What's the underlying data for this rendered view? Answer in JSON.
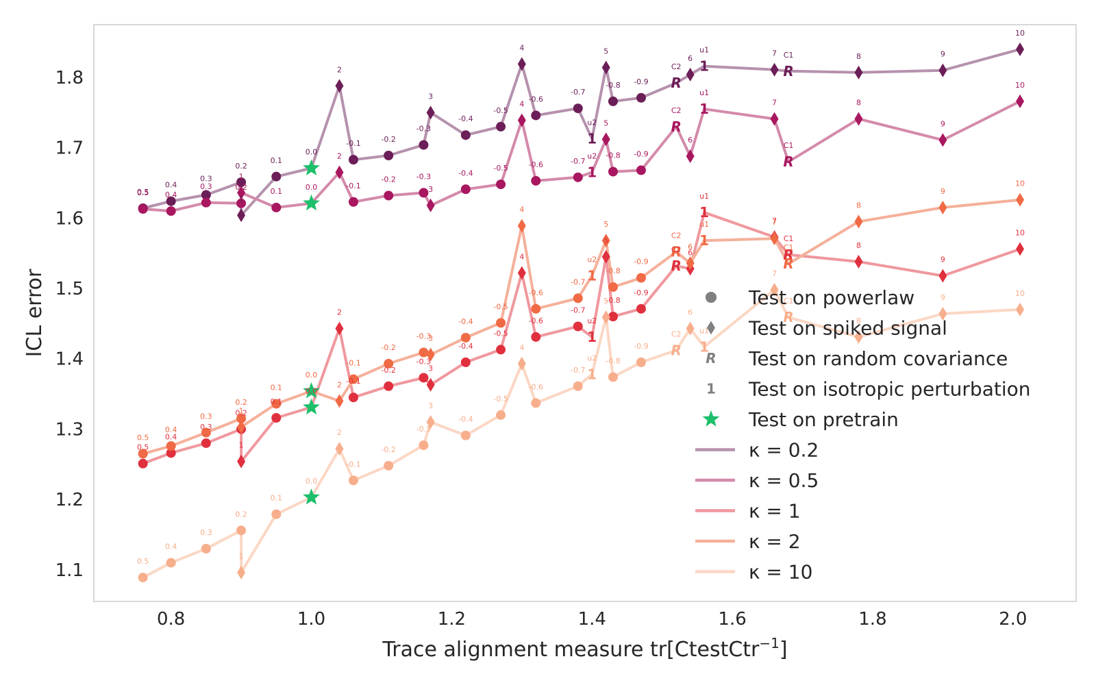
{
  "chart_data": {
    "type": "line",
    "title": "",
    "xlabel": "Trace alignment measure tr[CtestCtr",
    "xlabel_sup": "−1",
    "xlabel_end": "]",
    "ylabel": "ICL error",
    "xlim": [
      0.69,
      2.09
    ],
    "ylim": [
      1.055,
      1.875
    ],
    "xticks": [
      0.8,
      1.0,
      1.2,
      1.4,
      1.6,
      1.8,
      2.0
    ],
    "xtick_labels": [
      "0.8",
      "1.0",
      "1.2",
      "1.4",
      "1.6",
      "1.8",
      "2.0"
    ],
    "yticks": [
      1.1,
      1.2,
      1.3,
      1.4,
      1.5,
      1.6,
      1.7,
      1.8
    ],
    "ytick_labels": [
      "1.1",
      "1.2",
      "1.3",
      "1.4",
      "1.5",
      "1.6",
      "1.7",
      "1.8"
    ],
    "grid": false,
    "legend_position": "lower-right",
    "legend": {
      "markers": [
        {
          "marker": "circle",
          "label": "Test on powerlaw",
          "color": "#808080"
        },
        {
          "marker": "diamond",
          "label": "Test on spiked signal",
          "color": "#808080"
        },
        {
          "marker": "R",
          "label": "Test on random covariance",
          "color": "#808080"
        },
        {
          "marker": "1",
          "label": "Test on isotropic perturbation",
          "color": "#808080"
        },
        {
          "marker": "star",
          "label": "Test on pretrain",
          "color": "#1dbf6b"
        }
      ],
      "series_prefix": "κ = "
    },
    "pretrain_color": "#1dbf6b",
    "series": [
      {
        "name": "0.2",
        "color": "#6b1e57",
        "line_color": "#b592ad",
        "path": [
          {
            "x": 0.76,
            "y": 1.614,
            "m": "o",
            "l": "0.5"
          },
          {
            "x": 0.8,
            "y": 1.624,
            "m": "o",
            "l": "0.4"
          },
          {
            "x": 0.85,
            "y": 1.633,
            "m": "o",
            "l": "0.3"
          },
          {
            "x": 0.9,
            "y": 1.651,
            "m": "o",
            "l": "0.2"
          },
          {
            "x": 0.9,
            "y": 1.604,
            "m": "d",
            "l": "1"
          },
          {
            "x": 0.95,
            "y": 1.659,
            "m": "o",
            "l": "0.1"
          },
          {
            "x": 1.0,
            "y": 1.671,
            "m": "s",
            "l": "0.0"
          },
          {
            "x": 1.04,
            "y": 1.788,
            "m": "d",
            "l": "2"
          },
          {
            "x": 1.06,
            "y": 1.683,
            "m": "o",
            "l": "-0.1"
          },
          {
            "x": 1.11,
            "y": 1.689,
            "m": "o",
            "l": "-0.2"
          },
          {
            "x": 1.16,
            "y": 1.704,
            "m": "o",
            "l": "-0.3"
          },
          {
            "x": 1.17,
            "y": 1.75,
            "m": "d",
            "l": "3"
          },
          {
            "x": 1.22,
            "y": 1.718,
            "m": "o",
            "l": "-0.4"
          },
          {
            "x": 1.27,
            "y": 1.73,
            "m": "o",
            "l": "-0.5"
          },
          {
            "x": 1.3,
            "y": 1.819,
            "m": "d",
            "l": "4"
          },
          {
            "x": 1.32,
            "y": 1.746,
            "m": "o",
            "l": "-0.6"
          },
          {
            "x": 1.38,
            "y": 1.756,
            "m": "o",
            "l": "-0.7"
          },
          {
            "x": 1.4,
            "y": 1.713,
            "m": "1",
            "l": "u2"
          },
          {
            "x": 1.42,
            "y": 1.814,
            "m": "d",
            "l": "5"
          },
          {
            "x": 1.43,
            "y": 1.766,
            "m": "o",
            "l": "-0.8"
          },
          {
            "x": 1.47,
            "y": 1.771,
            "m": "o",
            "l": "-0.9"
          },
          {
            "x": 1.52,
            "y": 1.792,
            "m": "R",
            "l": "C2"
          },
          {
            "x": 1.54,
            "y": 1.804,
            "m": "d",
            "l": "6"
          },
          {
            "x": 1.56,
            "y": 1.816,
            "m": "1",
            "l": "u1"
          },
          {
            "x": 1.66,
            "y": 1.811,
            "m": "d",
            "l": "7"
          },
          {
            "x": 1.68,
            "y": 1.809,
            "m": "R",
            "l": "C1"
          },
          {
            "x": 1.78,
            "y": 1.807,
            "m": "d",
            "l": "8"
          },
          {
            "x": 1.9,
            "y": 1.81,
            "m": "d",
            "l": "9"
          },
          {
            "x": 2.01,
            "y": 1.84,
            "m": "d",
            "l": "10"
          }
        ]
      },
      {
        "name": "0.5",
        "color": "#a8175f",
        "line_color": "#d48aaa",
        "path": [
          {
            "x": 0.76,
            "y": 1.613,
            "m": "o",
            "l": "0.5"
          },
          {
            "x": 0.8,
            "y": 1.61,
            "m": "o",
            "l": "0.4"
          },
          {
            "x": 0.85,
            "y": 1.622,
            "m": "o",
            "l": "0.3"
          },
          {
            "x": 0.9,
            "y": 1.621,
            "m": "o",
            "l": "0.2"
          },
          {
            "x": 0.9,
            "y": 1.636,
            "m": "d",
            "l": "1"
          },
          {
            "x": 0.95,
            "y": 1.615,
            "m": "o",
            "l": "0.1"
          },
          {
            "x": 1.0,
            "y": 1.621,
            "m": "s",
            "l": "0.0"
          },
          {
            "x": 1.04,
            "y": 1.665,
            "m": "d",
            "l": "2"
          },
          {
            "x": 1.06,
            "y": 1.623,
            "m": "o",
            "l": "-0.1"
          },
          {
            "x": 1.11,
            "y": 1.632,
            "m": "o",
            "l": "-0.2"
          },
          {
            "x": 1.16,
            "y": 1.636,
            "m": "o",
            "l": "-0.3"
          },
          {
            "x": 1.17,
            "y": 1.618,
            "m": "d",
            "l": "3"
          },
          {
            "x": 1.22,
            "y": 1.641,
            "m": "o",
            "l": "-0.4"
          },
          {
            "x": 1.27,
            "y": 1.648,
            "m": "o",
            "l": "-0.5"
          },
          {
            "x": 1.3,
            "y": 1.739,
            "m": "d",
            "l": "4"
          },
          {
            "x": 1.32,
            "y": 1.653,
            "m": "o",
            "l": "-0.6"
          },
          {
            "x": 1.38,
            "y": 1.658,
            "m": "o",
            "l": "-0.7"
          },
          {
            "x": 1.4,
            "y": 1.665,
            "m": "1",
            "l": "u2"
          },
          {
            "x": 1.42,
            "y": 1.712,
            "m": "d",
            "l": "5"
          },
          {
            "x": 1.43,
            "y": 1.666,
            "m": "o",
            "l": "-0.8"
          },
          {
            "x": 1.47,
            "y": 1.668,
            "m": "o",
            "l": "-0.9"
          },
          {
            "x": 1.52,
            "y": 1.73,
            "m": "R",
            "l": "C2"
          },
          {
            "x": 1.54,
            "y": 1.688,
            "m": "d",
            "l": "6"
          },
          {
            "x": 1.56,
            "y": 1.755,
            "m": "1",
            "l": "u1"
          },
          {
            "x": 1.66,
            "y": 1.741,
            "m": "d",
            "l": "7"
          },
          {
            "x": 1.68,
            "y": 1.68,
            "m": "R",
            "l": "C1"
          },
          {
            "x": 1.78,
            "y": 1.741,
            "m": "d",
            "l": "8"
          },
          {
            "x": 1.9,
            "y": 1.711,
            "m": "d",
            "l": "9"
          },
          {
            "x": 2.01,
            "y": 1.766,
            "m": "d",
            "l": "10"
          }
        ]
      },
      {
        "name": "1",
        "color": "#e0303e",
        "line_color": "#f0989e",
        "path": [
          {
            "x": 0.76,
            "y": 1.251,
            "m": "o",
            "l": "0.5"
          },
          {
            "x": 0.8,
            "y": 1.266,
            "m": "o",
            "l": "0.4"
          },
          {
            "x": 0.85,
            "y": 1.28,
            "m": "o",
            "l": "0.3"
          },
          {
            "x": 0.9,
            "y": 1.3,
            "m": "o",
            "l": "0.2"
          },
          {
            "x": 0.9,
            "y": 1.254,
            "m": "d",
            "l": "1"
          },
          {
            "x": 0.95,
            "y": 1.316,
            "m": "o",
            "l": "0.1"
          },
          {
            "x": 1.0,
            "y": 1.331,
            "m": "s",
            "l": "0.0"
          },
          {
            "x": 1.04,
            "y": 1.443,
            "m": "d",
            "l": "2"
          },
          {
            "x": 1.06,
            "y": 1.345,
            "m": "o",
            "l": "-0.1"
          },
          {
            "x": 1.11,
            "y": 1.361,
            "m": "o",
            "l": "-0.2"
          },
          {
            "x": 1.16,
            "y": 1.373,
            "m": "o",
            "l": "-0.3"
          },
          {
            "x": 1.17,
            "y": 1.363,
            "m": "d",
            "l": "3"
          },
          {
            "x": 1.22,
            "y": 1.395,
            "m": "o",
            "l": "-0.4"
          },
          {
            "x": 1.27,
            "y": 1.413,
            "m": "o",
            "l": "-0.5"
          },
          {
            "x": 1.3,
            "y": 1.522,
            "m": "d",
            "l": "4"
          },
          {
            "x": 1.32,
            "y": 1.431,
            "m": "o",
            "l": "-0.6"
          },
          {
            "x": 1.38,
            "y": 1.446,
            "m": "o",
            "l": "-0.7"
          },
          {
            "x": 1.4,
            "y": 1.431,
            "m": "1",
            "l": "u2"
          },
          {
            "x": 1.42,
            "y": 1.545,
            "m": "d",
            "l": "5"
          },
          {
            "x": 1.43,
            "y": 1.46,
            "m": "o",
            "l": "-0.8"
          },
          {
            "x": 1.47,
            "y": 1.471,
            "m": "o",
            "l": "-0.9"
          },
          {
            "x": 1.52,
            "y": 1.532,
            "m": "R",
            "l": "C2"
          },
          {
            "x": 1.54,
            "y": 1.528,
            "m": "d",
            "l": "6"
          },
          {
            "x": 1.56,
            "y": 1.608,
            "m": "1",
            "l": "u1"
          },
          {
            "x": 1.66,
            "y": 1.573,
            "m": "d",
            "l": "7"
          },
          {
            "x": 1.68,
            "y": 1.548,
            "m": "R",
            "l": "C1"
          },
          {
            "x": 1.78,
            "y": 1.538,
            "m": "d",
            "l": "8"
          },
          {
            "x": 1.9,
            "y": 1.518,
            "m": "d",
            "l": "9"
          },
          {
            "x": 2.01,
            "y": 1.556,
            "m": "d",
            "l": "10"
          }
        ]
      },
      {
        "name": "2",
        "color": "#f06a45",
        "line_color": "#f5b09a",
        "path": [
          {
            "x": 0.76,
            "y": 1.265,
            "m": "o",
            "l": "0.5"
          },
          {
            "x": 0.8,
            "y": 1.276,
            "m": "o",
            "l": "0.4"
          },
          {
            "x": 0.85,
            "y": 1.295,
            "m": "o",
            "l": "0.3"
          },
          {
            "x": 0.9,
            "y": 1.315,
            "m": "o",
            "l": "0.2"
          },
          {
            "x": 0.9,
            "y": 1.303,
            "m": "d",
            "l": "1"
          },
          {
            "x": 0.95,
            "y": 1.336,
            "m": "o",
            "l": "0.1"
          },
          {
            "x": 1.0,
            "y": 1.354,
            "m": "s",
            "l": "0.0"
          },
          {
            "x": 1.04,
            "y": 1.34,
            "m": "d",
            "l": "2"
          },
          {
            "x": 1.06,
            "y": 1.371,
            "m": "o",
            "l": "-0.1"
          },
          {
            "x": 1.11,
            "y": 1.393,
            "m": "o",
            "l": "-0.2"
          },
          {
            "x": 1.16,
            "y": 1.409,
            "m": "o",
            "l": "-0.3"
          },
          {
            "x": 1.17,
            "y": 1.406,
            "m": "d",
            "l": "3"
          },
          {
            "x": 1.22,
            "y": 1.43,
            "m": "o",
            "l": "-0.4"
          },
          {
            "x": 1.27,
            "y": 1.451,
            "m": "o",
            "l": "-0.5"
          },
          {
            "x": 1.3,
            "y": 1.589,
            "m": "d",
            "l": "4"
          },
          {
            "x": 1.32,
            "y": 1.471,
            "m": "o",
            "l": "-0.6"
          },
          {
            "x": 1.38,
            "y": 1.486,
            "m": "o",
            "l": "-0.7"
          },
          {
            "x": 1.4,
            "y": 1.518,
            "m": "1",
            "l": "u2"
          },
          {
            "x": 1.42,
            "y": 1.568,
            "m": "d",
            "l": "5"
          },
          {
            "x": 1.43,
            "y": 1.502,
            "m": "o",
            "l": "-0.8"
          },
          {
            "x": 1.47,
            "y": 1.515,
            "m": "o",
            "l": "-0.9"
          },
          {
            "x": 1.52,
            "y": 1.552,
            "m": "R",
            "l": "C2"
          },
          {
            "x": 1.54,
            "y": 1.536,
            "m": "d",
            "l": "6"
          },
          {
            "x": 1.56,
            "y": 1.568,
            "m": "1",
            "l": "u1"
          },
          {
            "x": 1.66,
            "y": 1.571,
            "m": "d",
            "l": "7"
          },
          {
            "x": 1.68,
            "y": 1.535,
            "m": "R",
            "l": "C1"
          },
          {
            "x": 1.78,
            "y": 1.595,
            "m": "d",
            "l": "8"
          },
          {
            "x": 1.9,
            "y": 1.615,
            "m": "d",
            "l": "9"
          },
          {
            "x": 2.01,
            "y": 1.626,
            "m": "d",
            "l": "10"
          }
        ]
      },
      {
        "name": "10",
        "color": "#f7ae8c",
        "line_color": "#fbd7c4",
        "path": [
          {
            "x": 0.76,
            "y": 1.089,
            "m": "o",
            "l": "0.5"
          },
          {
            "x": 0.8,
            "y": 1.11,
            "m": "o",
            "l": "0.4"
          },
          {
            "x": 0.85,
            "y": 1.13,
            "m": "o",
            "l": "0.3"
          },
          {
            "x": 0.9,
            "y": 1.156,
            "m": "o",
            "l": "0.2"
          },
          {
            "x": 0.9,
            "y": 1.096,
            "m": "d",
            "l": "1"
          },
          {
            "x": 0.95,
            "y": 1.179,
            "m": "o",
            "l": "0.1"
          },
          {
            "x": 1.0,
            "y": 1.203,
            "m": "s",
            "l": "0.0"
          },
          {
            "x": 1.04,
            "y": 1.272,
            "m": "d",
            "l": "2"
          },
          {
            "x": 1.06,
            "y": 1.227,
            "m": "o",
            "l": "-0.1"
          },
          {
            "x": 1.11,
            "y": 1.248,
            "m": "o",
            "l": "-0.2"
          },
          {
            "x": 1.16,
            "y": 1.277,
            "m": "o",
            "l": "-0.3"
          },
          {
            "x": 1.17,
            "y": 1.31,
            "m": "d",
            "l": "3"
          },
          {
            "x": 1.22,
            "y": 1.291,
            "m": "o",
            "l": "-0.4"
          },
          {
            "x": 1.27,
            "y": 1.32,
            "m": "o",
            "l": "-0.5"
          },
          {
            "x": 1.3,
            "y": 1.393,
            "m": "d",
            "l": "4"
          },
          {
            "x": 1.32,
            "y": 1.337,
            "m": "o",
            "l": "-0.6"
          },
          {
            "x": 1.38,
            "y": 1.361,
            "m": "o",
            "l": "-0.7"
          },
          {
            "x": 1.4,
            "y": 1.378,
            "m": "1",
            "l": "u2"
          },
          {
            "x": 1.42,
            "y": 1.459,
            "m": "d",
            "l": "5"
          },
          {
            "x": 1.43,
            "y": 1.374,
            "m": "o",
            "l": "-0.8"
          },
          {
            "x": 1.47,
            "y": 1.395,
            "m": "o",
            "l": "-0.9"
          },
          {
            "x": 1.52,
            "y": 1.412,
            "m": "R",
            "l": "C2"
          },
          {
            "x": 1.54,
            "y": 1.443,
            "m": "d",
            "l": "6"
          },
          {
            "x": 1.56,
            "y": 1.417,
            "m": "1",
            "l": "u1"
          },
          {
            "x": 1.66,
            "y": 1.498,
            "m": "d",
            "l": "7"
          },
          {
            "x": 1.68,
            "y": 1.459,
            "m": "R",
            "l": "C1"
          },
          {
            "x": 1.78,
            "y": 1.431,
            "m": "d",
            "l": "8"
          },
          {
            "x": 1.9,
            "y": 1.464,
            "m": "d",
            "l": "9"
          },
          {
            "x": 2.01,
            "y": 1.47,
            "m": "d",
            "l": "10"
          }
        ]
      }
    ]
  }
}
